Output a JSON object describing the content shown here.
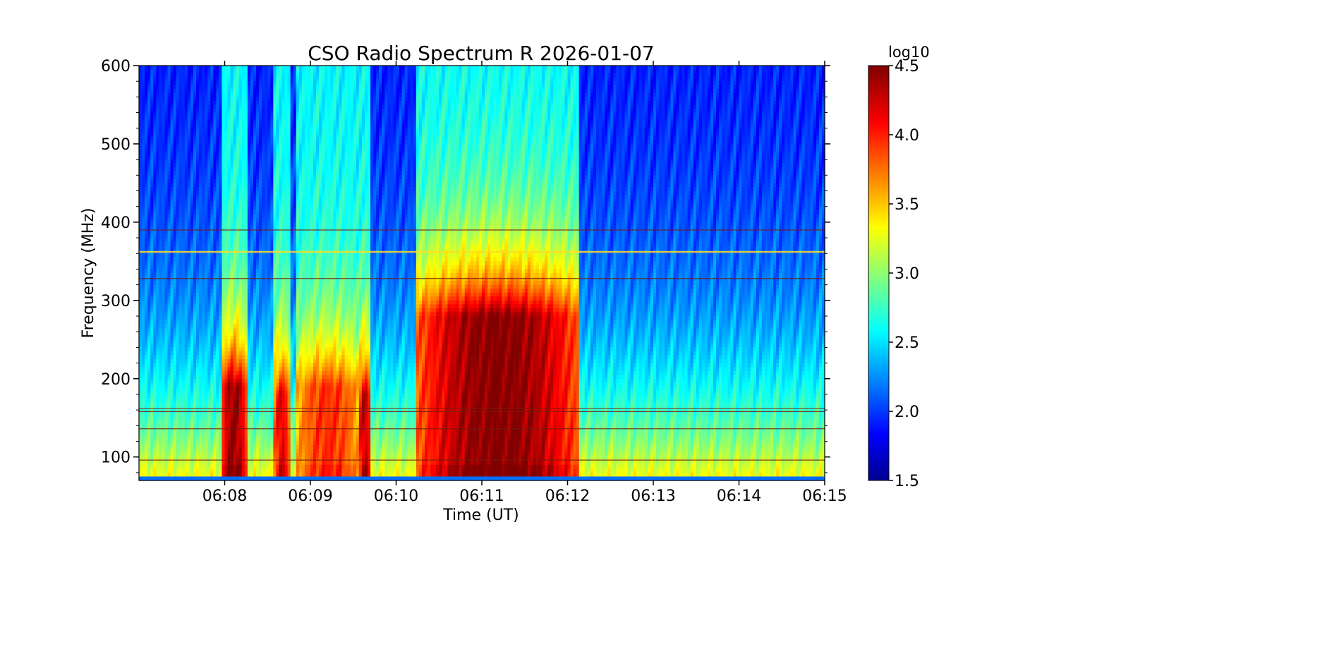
{
  "chart_data": {
    "type": "heatmap",
    "title": "CSO Radio Spectrum R 2026-01-07",
    "xlabel": "Time (UT)",
    "ylabel": "Frequency (MHz)",
    "x_ticks": [
      "06:08",
      "06:09",
      "06:10",
      "06:11",
      "06:12",
      "06:13",
      "06:14",
      "06:15"
    ],
    "x_range": [
      "06:07:00",
      "06:15:00"
    ],
    "y_ticks": [
      100,
      200,
      300,
      400,
      500,
      600
    ],
    "ylim": [
      70,
      600
    ],
    "colorbar": {
      "label": "log10",
      "ticks": [
        "1.5",
        "2.0",
        "2.5",
        "3.0",
        "3.5",
        "4.0",
        "4.5"
      ],
      "range": [
        1.5,
        4.5
      ],
      "colormap": "jet"
    },
    "background_level": 1.9,
    "low_freq_level_boost": 1.5,
    "bursts": [
      {
        "start": "06:07:58",
        "end": "06:08:15",
        "peak": 4.45,
        "top_freq": 190
      },
      {
        "start": "06:08:35",
        "end": "06:08:45",
        "peak": 4.2,
        "top_freq": 180
      },
      {
        "start": "06:08:50",
        "end": "06:09:35",
        "peak": 4.0,
        "top_freq": 190
      },
      {
        "start": "06:09:34",
        "end": "06:09:42",
        "peak": 4.3,
        "top_freq": 180
      },
      {
        "start": "06:10:15",
        "end": "06:12:08",
        "peak": 4.5,
        "top_freq": 280
      }
    ],
    "interference_lines_mhz": [
      362,
      328,
      390,
      162,
      158,
      136,
      96
    ],
    "grid": false
  }
}
